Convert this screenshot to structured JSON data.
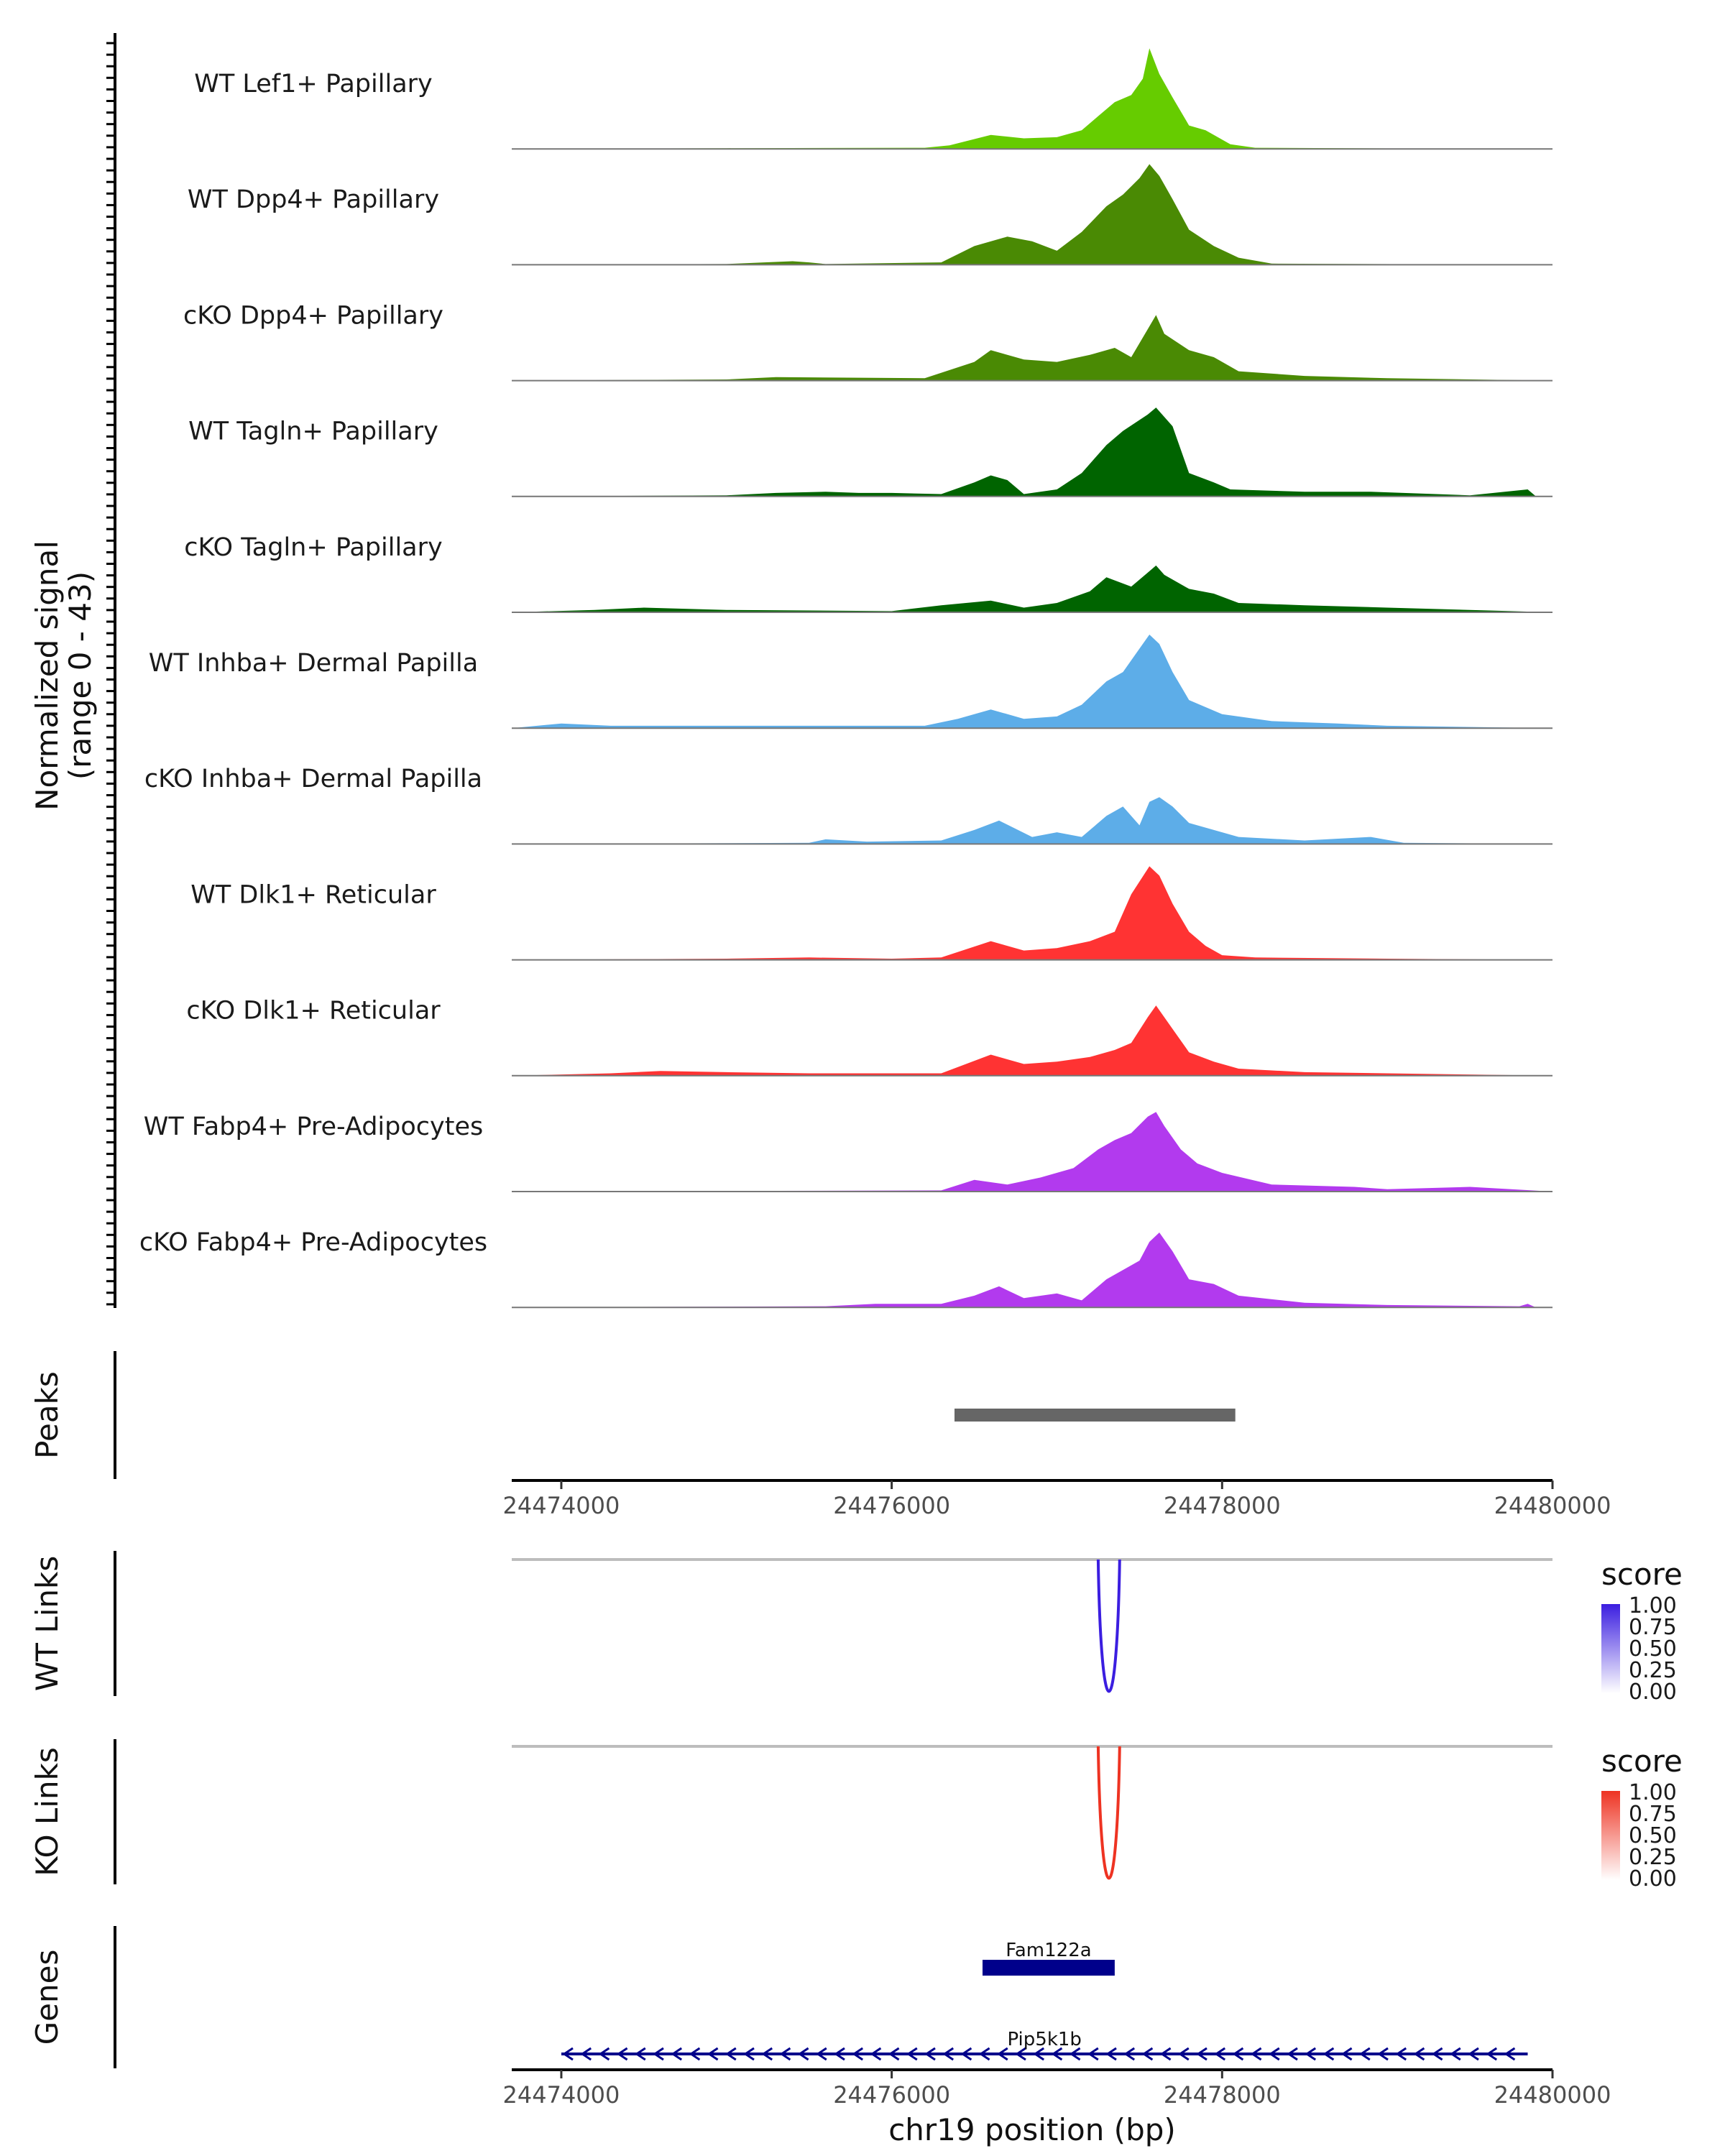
{
  "chart_data": {
    "type": "area",
    "title": "",
    "coverage_axis_title": "Normalized signal",
    "coverage_axis_range": "(range 0 - 43)",
    "ylim": [
      0,
      43
    ],
    "xlim": [
      24473700,
      24480000
    ],
    "xlabel": "chr19 position (bp)",
    "x_ticks": [
      24474000,
      24476000,
      24478000,
      24480000
    ],
    "x_tick_labels": [
      "24474000",
      "24476000",
      "24478000",
      "24480000"
    ],
    "tracks": [
      {
        "name": "WT Lef1+ Papillary",
        "color": "#66cc00",
        "x": [
          24473700,
          24475000,
          24476200,
          24476350,
          24476600,
          24476800,
          24477000,
          24477150,
          24477250,
          24477350,
          24477450,
          24477520,
          24477560,
          24477620,
          24477700,
          24477800,
          24477900,
          24478050,
          24478200,
          24479000,
          24480000
        ],
        "y": [
          0,
          0.3,
          0.5,
          1.5,
          6,
          4.5,
          5,
          8,
          14,
          20,
          23,
          30,
          43,
          32,
          22,
          10,
          8,
          2,
          0.5,
          0.2,
          0
        ]
      },
      {
        "name": "WT Dpp4+ Papillary",
        "color": "#4a8a04",
        "x": [
          24473700,
          24475000,
          24475400,
          24475500,
          24475600,
          24476300,
          24476500,
          24476700,
          24476850,
          24477000,
          24477150,
          24477300,
          24477400,
          24477500,
          24477560,
          24477620,
          24477700,
          24477800,
          24477950,
          24478100,
          24478300,
          24480000
        ],
        "y": [
          0,
          0.3,
          1.5,
          1,
          0.3,
          1,
          8,
          12,
          10,
          6,
          14,
          25,
          30,
          37,
          43,
          38,
          28,
          15,
          8,
          3,
          0.5,
          0
        ]
      },
      {
        "name": "cKO Dpp4+ Papillary",
        "color": "#4a8a04",
        "x": [
          24473700,
          24475000,
          24475300,
          24476200,
          24476500,
          24476600,
          24476800,
          24477000,
          24477200,
          24477350,
          24477450,
          24477550,
          24477600,
          24477650,
          24477800,
          24477950,
          24478100,
          24478500,
          24479000,
          24480000
        ],
        "y": [
          0,
          0.5,
          1.5,
          1,
          8,
          13,
          9,
          8,
          11,
          14,
          10,
          22,
          28,
          20,
          13,
          10,
          4,
          2,
          1,
          0
        ]
      },
      {
        "name": "WT Tagln+ Papillary",
        "color": "#006400",
        "x": [
          24473700,
          24475000,
          24475300,
          24475600,
          24475800,
          24476000,
          24476300,
          24476500,
          24476600,
          24476700,
          24476800,
          24477000,
          24477150,
          24477300,
          24477400,
          24477550,
          24477600,
          24477700,
          24477800,
          24477950,
          24478050,
          24478500,
          24478900,
          24479500,
          24479850,
          24479900,
          24480000
        ],
        "y": [
          0,
          0.5,
          1.5,
          2,
          1.5,
          1.5,
          1,
          6,
          9,
          7,
          1,
          3,
          10,
          22,
          28,
          35,
          38,
          30,
          10,
          6,
          3,
          2,
          2,
          0.5,
          3,
          0,
          0
        ]
      },
      {
        "name": "cKO Tagln+ Papillary",
        "color": "#006400",
        "x": [
          24473700,
          24474200,
          24474500,
          24475000,
          24476000,
          24476300,
          24476600,
          24476800,
          24477000,
          24477200,
          24477300,
          24477450,
          24477550,
          24477600,
          24477650,
          24477800,
          24477950,
          24478100,
          24478500,
          24479000,
          24480000
        ],
        "y": [
          0,
          1,
          2,
          1,
          0.5,
          3,
          5,
          2,
          4,
          9,
          15,
          11,
          17,
          20,
          16,
          10,
          8,
          4,
          3,
          2,
          0
        ]
      },
      {
        "name": "WT Inhba+ Dermal Papilla",
        "color": "#5dade8",
        "x": [
          24473700,
          24474000,
          24474300,
          24475000,
          24475500,
          24476200,
          24476400,
          24476600,
          24476800,
          24477000,
          24477150,
          24477300,
          24477400,
          24477500,
          24477560,
          24477620,
          24477700,
          24477800,
          24478000,
          24478300,
          24478700,
          24479000,
          24480000
        ],
        "y": [
          0,
          2,
          1,
          1,
          1,
          1,
          4,
          8,
          4,
          5,
          10,
          20,
          24,
          34,
          40,
          36,
          24,
          12,
          6,
          3,
          2,
          1,
          0
        ]
      },
      {
        "name": "cKO Inhba+ Dermal Papilla",
        "color": "#5dade8",
        "x": [
          24473700,
          24475500,
          24475600,
          24475850,
          24476300,
          24476500,
          24476650,
          24476850,
          24477000,
          24477150,
          24477300,
          24477400,
          24477500,
          24477560,
          24477620,
          24477700,
          24477800,
          24478100,
          24478500,
          24478900,
          24479100,
          24480000
        ],
        "y": [
          0,
          0.5,
          2,
          1,
          1.5,
          6,
          10,
          3,
          5,
          3,
          12,
          16,
          8,
          18,
          20,
          16,
          9,
          3,
          1.5,
          3,
          0.5,
          0
        ]
      },
      {
        "name": "WT Dlk1+ Reticular",
        "color": "#ff3333",
        "x": [
          24473700,
          24475000,
          24475500,
          24476000,
          24476300,
          24476600,
          24476800,
          24477000,
          24477200,
          24477350,
          24477450,
          24477560,
          24477620,
          24477700,
          24477800,
          24477900,
          24478000,
          24478200,
          24479000,
          24480000
        ],
        "y": [
          0,
          0.5,
          1,
          0.5,
          1,
          8,
          4,
          5,
          8,
          12,
          28,
          40,
          36,
          24,
          12,
          6,
          2,
          1,
          0.5,
          0
        ]
      },
      {
        "name": "cKO Dlk1+ Reticular",
        "color": "#ff3333",
        "x": [
          24473700,
          24474300,
          24474600,
          24475000,
          24475500,
          24476300,
          24476600,
          24476800,
          24477000,
          24477200,
          24477350,
          24477450,
          24477550,
          24477600,
          24477700,
          24477800,
          24477950,
          24478100,
          24478500,
          24479000,
          24480000
        ],
        "y": [
          0,
          1,
          2,
          1.5,
          1,
          1,
          9,
          5,
          6,
          8,
          11,
          14,
          25,
          30,
          20,
          10,
          6,
          3,
          1.5,
          1,
          0
        ]
      },
      {
        "name": "WT Fabp4+ Pre-Adipocytes",
        "color": "#b23aee",
        "x": [
          24473700,
          24476300,
          24476500,
          24476700,
          24476900,
          24477100,
          24477250,
          24477350,
          24477450,
          24477550,
          24477600,
          24477650,
          24477750,
          24477850,
          24478000,
          24478300,
          24478800,
          24479000,
          24479500,
          24480000
        ],
        "y": [
          0,
          0.5,
          5,
          3,
          6,
          10,
          18,
          22,
          25,
          32,
          34,
          28,
          18,
          12,
          8,
          3,
          2,
          1,
          2,
          0
        ]
      },
      {
        "name": "cKO Fabp4+ Pre-Adipocytes",
        "color": "#b23aee",
        "x": [
          24473700,
          24475600,
          24475900,
          24476300,
          24476500,
          24476650,
          24476800,
          24477000,
          24477150,
          24477300,
          24477400,
          24477500,
          24477560,
          24477620,
          24477700,
          24477800,
          24477950,
          24478100,
          24478500,
          24479000,
          24479800,
          24479850,
          24479900,
          24480000
        ],
        "y": [
          0,
          0.5,
          1.5,
          1.5,
          5,
          9,
          4,
          6,
          3,
          12,
          16,
          20,
          28,
          32,
          24,
          12,
          10,
          5,
          2,
          1,
          0.5,
          1.5,
          0,
          0
        ]
      }
    ],
    "peaks": {
      "title": "Peaks",
      "regions": [
        [
          24476380,
          24478080
        ]
      ],
      "color": "#666666"
    },
    "links": [
      {
        "title": "WT Links",
        "color": "#3b1ee0",
        "start": 24477250,
        "end": 24477380,
        "score": 1.0,
        "legend_title": "score",
        "legend_ticks": [
          "1.00",
          "0.75",
          "0.50",
          "0.25",
          "0.00"
        ]
      },
      {
        "title": "KO Links",
        "color": "#ee3322",
        "start": 24477250,
        "end": 24477380,
        "score": 1.0,
        "legend_title": "score",
        "legend_ticks": [
          "1.00",
          "0.75",
          "0.50",
          "0.25",
          "0.00"
        ]
      }
    ],
    "genes": {
      "title": "Genes",
      "color": "#00008b",
      "items": [
        {
          "name": "Fam122a",
          "start": 24476550,
          "end": 24477350,
          "strand": "+",
          "type": "exon"
        },
        {
          "name": "Pip5k1b",
          "start": 24474000,
          "end": 24479850,
          "strand": "-",
          "type": "intron"
        }
      ]
    }
  }
}
